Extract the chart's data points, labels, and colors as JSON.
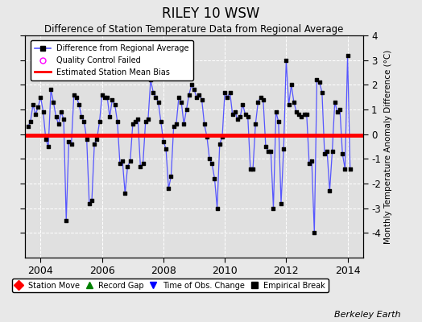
{
  "title": "RILEY 10 WSW",
  "subtitle": "Difference of Station Temperature Data from Regional Average",
  "ylabel_right": "Monthly Temperature Anomaly Difference (°C)",
  "watermark": "Berkeley Earth",
  "bias_line": -0.05,
  "ylim": [
    -5,
    4
  ],
  "yticks": [
    -4,
    -3,
    -2,
    -1,
    0,
    1,
    2,
    3,
    4
  ],
  "xlim": [
    2003.5,
    2014.5
  ],
  "xticks": [
    2004,
    2006,
    2008,
    2010,
    2012,
    2014
  ],
  "fig_bg_color": "#e8e8e8",
  "plot_bg_color": "#e0e0e0",
  "line_color": "#5555ff",
  "marker_color": "#000000",
  "bias_color": "#ff0000",
  "data": [
    [
      2003.583,
      0.3
    ],
    [
      2003.667,
      0.5
    ],
    [
      2003.75,
      1.2
    ],
    [
      2003.833,
      0.8
    ],
    [
      2003.917,
      1.1
    ],
    [
      2004.0,
      1.5
    ],
    [
      2004.083,
      0.9
    ],
    [
      2004.167,
      -0.2
    ],
    [
      2004.25,
      -0.5
    ],
    [
      2004.333,
      1.8
    ],
    [
      2004.417,
      1.3
    ],
    [
      2004.5,
      0.7
    ],
    [
      2004.583,
      0.4
    ],
    [
      2004.667,
      0.9
    ],
    [
      2004.75,
      0.6
    ],
    [
      2004.833,
      -3.5
    ],
    [
      2004.917,
      -0.3
    ],
    [
      2005.0,
      -0.4
    ],
    [
      2005.083,
      1.6
    ],
    [
      2005.167,
      1.5
    ],
    [
      2005.25,
      1.2
    ],
    [
      2005.333,
      0.7
    ],
    [
      2005.417,
      0.5
    ],
    [
      2005.5,
      -0.2
    ],
    [
      2005.583,
      -2.8
    ],
    [
      2005.667,
      -2.7
    ],
    [
      2005.75,
      -0.4
    ],
    [
      2005.833,
      -0.2
    ],
    [
      2005.917,
      0.5
    ],
    [
      2006.0,
      1.6
    ],
    [
      2006.083,
      1.5
    ],
    [
      2006.167,
      1.5
    ],
    [
      2006.25,
      0.7
    ],
    [
      2006.333,
      1.4
    ],
    [
      2006.417,
      1.2
    ],
    [
      2006.5,
      0.5
    ],
    [
      2006.583,
      -1.2
    ],
    [
      2006.667,
      -1.1
    ],
    [
      2006.75,
      -2.4
    ],
    [
      2006.833,
      -1.3
    ],
    [
      2006.917,
      -1.1
    ],
    [
      2007.0,
      0.4
    ],
    [
      2007.083,
      0.5
    ],
    [
      2007.167,
      0.6
    ],
    [
      2007.25,
      -1.3
    ],
    [
      2007.333,
      -1.2
    ],
    [
      2007.417,
      0.5
    ],
    [
      2007.5,
      0.6
    ],
    [
      2007.583,
      2.2
    ],
    [
      2007.667,
      1.7
    ],
    [
      2007.75,
      1.5
    ],
    [
      2007.833,
      1.3
    ],
    [
      2007.917,
      0.5
    ],
    [
      2008.0,
      -0.3
    ],
    [
      2008.083,
      -0.6
    ],
    [
      2008.167,
      -2.2
    ],
    [
      2008.25,
      -1.7
    ],
    [
      2008.333,
      0.3
    ],
    [
      2008.417,
      0.4
    ],
    [
      2008.5,
      1.5
    ],
    [
      2008.583,
      1.3
    ],
    [
      2008.667,
      0.4
    ],
    [
      2008.75,
      1.0
    ],
    [
      2008.833,
      1.6
    ],
    [
      2008.917,
      2.0
    ],
    [
      2009.0,
      1.8
    ],
    [
      2009.083,
      1.5
    ],
    [
      2009.167,
      1.6
    ],
    [
      2009.25,
      1.4
    ],
    [
      2009.333,
      0.4
    ],
    [
      2009.417,
      -0.1
    ],
    [
      2009.5,
      -1.0
    ],
    [
      2009.583,
      -1.2
    ],
    [
      2009.667,
      -1.8
    ],
    [
      2009.75,
      -3.0
    ],
    [
      2009.833,
      -0.4
    ],
    [
      2009.917,
      -0.1
    ],
    [
      2010.0,
      1.7
    ],
    [
      2010.083,
      1.5
    ],
    [
      2010.167,
      1.7
    ],
    [
      2010.25,
      0.8
    ],
    [
      2010.333,
      0.9
    ],
    [
      2010.417,
      0.6
    ],
    [
      2010.5,
      0.7
    ],
    [
      2010.583,
      1.2
    ],
    [
      2010.667,
      0.8
    ],
    [
      2010.75,
      0.7
    ],
    [
      2010.833,
      -1.4
    ],
    [
      2010.917,
      -1.4
    ],
    [
      2011.0,
      0.4
    ],
    [
      2011.083,
      1.3
    ],
    [
      2011.167,
      1.5
    ],
    [
      2011.25,
      1.4
    ],
    [
      2011.333,
      -0.5
    ],
    [
      2011.417,
      -0.7
    ],
    [
      2011.5,
      -0.7
    ],
    [
      2011.583,
      -3.0
    ],
    [
      2011.667,
      0.9
    ],
    [
      2011.75,
      0.5
    ],
    [
      2011.833,
      -2.8
    ],
    [
      2011.917,
      -0.6
    ],
    [
      2012.0,
      3.0
    ],
    [
      2012.083,
      1.2
    ],
    [
      2012.167,
      2.0
    ],
    [
      2012.25,
      1.3
    ],
    [
      2012.333,
      0.9
    ],
    [
      2012.417,
      0.8
    ],
    [
      2012.5,
      0.7
    ],
    [
      2012.583,
      0.8
    ],
    [
      2012.667,
      0.8
    ],
    [
      2012.75,
      -1.2
    ],
    [
      2012.833,
      -1.1
    ],
    [
      2012.917,
      -4.0
    ],
    [
      2013.0,
      2.2
    ],
    [
      2013.083,
      2.1
    ],
    [
      2013.167,
      1.7
    ],
    [
      2013.25,
      -0.8
    ],
    [
      2013.333,
      -0.7
    ],
    [
      2013.417,
      -2.3
    ],
    [
      2013.5,
      -0.7
    ],
    [
      2013.583,
      1.3
    ],
    [
      2013.667,
      0.9
    ],
    [
      2013.75,
      1.0
    ],
    [
      2013.833,
      -0.8
    ],
    [
      2013.917,
      -1.4
    ],
    [
      2014.0,
      3.2
    ],
    [
      2014.083,
      -1.4
    ]
  ]
}
